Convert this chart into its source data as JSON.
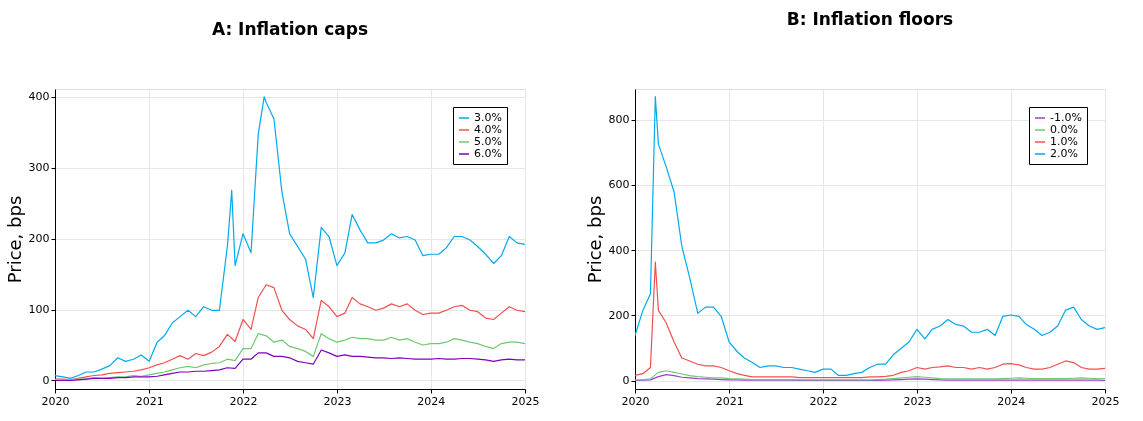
{
  "chart_data": [
    {
      "type": "line",
      "title": "A: Inflation caps",
      "ylabel": "Price, bps",
      "legend": "top right",
      "grid": true,
      "xlim": [
        "2020-01",
        "2025-01"
      ],
      "xticks": [
        "2020",
        "2021",
        "2022",
        "2023",
        "2024",
        "2025"
      ],
      "ylim": [
        -12,
        411
      ],
      "yticks": [
        0,
        100,
        200,
        300,
        400
      ],
      "x": [
        "2020-01",
        "2020-02",
        "2020-03",
        "2020-04",
        "2020-05",
        "2020-06",
        "2020-07",
        "2020-08",
        "2020-09",
        "2020-10",
        "2020-11",
        "2020-12",
        "2021-01",
        "2021-02",
        "2021-03",
        "2021-04",
        "2021-05",
        "2021-06",
        "2021-07",
        "2021-08",
        "2021-09",
        "2021-10",
        "2021-11",
        "2021-12",
        "2022-01",
        "2022-02",
        "2022-03",
        "2022-04",
        "2022-05",
        "2022-06",
        "2022-07",
        "2022-08",
        "2022-09",
        "2022-10",
        "2022-11",
        "2022-12",
        "2023-01",
        "2023-02",
        "2023-03",
        "2023-04",
        "2023-05",
        "2023-06",
        "2023-07",
        "2023-08",
        "2023-09",
        "2023-10",
        "2023-11",
        "2023-12",
        "2024-01",
        "2024-02",
        "2024-03",
        "2024-04",
        "2024-05",
        "2024-06",
        "2024-07",
        "2024-08",
        "2024-09",
        "2024-10",
        "2024-11",
        "2024-12",
        "2025-01"
      ],
      "series": [
        {
          "name": "3.0%",
          "color": "#00aaf0",
          "x": [
            "2020-01",
            "2020-02",
            "2020-03",
            "2020-04",
            "2020-05",
            "2020-06",
            "2020-07",
            "2020-08",
            "2020-09",
            "2020-10",
            "2020-11",
            "2020-12",
            "2021-01",
            "2021-02",
            "2021-03",
            "2021-04",
            "2021-05",
            "2021-06",
            "2021-07",
            "2021-08",
            "2021-09",
            "2021-10",
            "2021-11",
            "2021-11-18",
            "2021-12",
            "2022-01",
            "2022-02",
            "2022-03",
            "2022-03-24",
            "2022-04",
            "2022-05",
            "2022-06",
            "2022-07",
            "2022-08",
            "2022-09",
            "2022-10",
            "2022-11",
            "2022-12",
            "2023-01",
            "2023-02",
            "2023-03",
            "2023-04",
            "2023-05",
            "2023-06",
            "2023-07",
            "2023-08",
            "2023-09",
            "2023-10",
            "2023-11",
            "2023-12",
            "2024-01",
            "2024-02",
            "2024-03",
            "2024-04",
            "2024-05",
            "2024-06",
            "2024-07",
            "2024-08",
            "2024-09",
            "2024-10",
            "2024-11",
            "2024-12",
            "2025-01"
          ],
          "values": [
            7,
            5,
            3,
            7,
            12,
            12,
            16,
            21,
            32,
            27,
            30,
            36,
            27,
            54,
            63,
            81,
            90,
            99,
            90,
            104,
            99,
            99,
            189,
            268,
            162,
            207,
            180,
            347,
            400,
            392,
            369,
            266,
            207,
            189,
            171,
            117,
            216,
            203,
            162,
            180,
            234,
            212,
            194,
            194,
            198,
            207,
            201,
            203,
            198,
            176,
            178,
            178,
            187,
            203,
            203,
            198,
            189,
            178,
            165,
            176,
            203,
            194,
            192
          ]
        },
        {
          "name": "4.0%",
          "color": "#f05050",
          "values": [
            2,
            2,
            1,
            3,
            5,
            7,
            8,
            10,
            11,
            12,
            13,
            15,
            18,
            22,
            25,
            30,
            35,
            30,
            38,
            35,
            40,
            48,
            65,
            55,
            86,
            72,
            117,
            135,
            131,
            99,
            86,
            77,
            72,
            59,
            113,
            104,
            90,
            95,
            117,
            108,
            104,
            99,
            102,
            108,
            104,
            108,
            99,
            93,
            95,
            95,
            99,
            104,
            106,
            99,
            97,
            88,
            86,
            95,
            104,
            99,
            97
          ]
        },
        {
          "name": "5.0%",
          "color": "#70c870",
          "values": [
            1,
            1,
            1,
            2,
            2,
            4,
            3,
            4,
            5,
            5,
            7,
            6,
            8,
            10,
            12,
            15,
            18,
            20,
            18,
            22,
            24,
            25,
            30,
            28,
            45,
            45,
            66,
            63,
            54,
            57,
            48,
            45,
            41,
            34,
            66,
            59,
            54,
            57,
            61,
            59,
            59,
            57,
            57,
            61,
            57,
            59,
            54,
            50,
            52,
            52,
            54,
            59,
            57,
            54,
            52,
            48,
            45,
            52,
            54,
            54,
            52
          ]
        },
        {
          "name": "6.0%",
          "color": "#8000c0",
          "values": [
            0,
            0,
            0,
            1,
            2,
            3,
            3,
            3,
            4,
            4,
            5,
            5,
            5,
            6,
            8,
            10,
            12,
            12,
            13,
            13,
            14,
            15,
            18,
            17,
            30,
            30,
            39,
            39,
            34,
            34,
            32,
            27,
            25,
            23,
            43,
            39,
            34,
            36,
            34,
            34,
            33,
            32,
            32,
            31,
            32,
            31,
            30,
            30,
            30,
            31,
            30,
            30,
            31,
            31,
            30,
            29,
            27,
            29,
            30,
            29,
            29
          ]
        }
      ]
    },
    {
      "type": "line",
      "title": "B: Inflation floors",
      "ylabel": "Price, bps",
      "legend": "top right",
      "grid": true,
      "xlim": [
        "2020-01",
        "2025-01"
      ],
      "xticks": [
        "2020",
        "2021",
        "2022",
        "2023",
        "2024",
        "2025"
      ],
      "ylim": [
        -26,
        894
      ],
      "yticks": [
        0,
        200,
        400,
        600,
        800
      ],
      "x": [
        "2020-01",
        "2020-02",
        "2020-03",
        "2020-04",
        "2020-05",
        "2020-06",
        "2020-07",
        "2020-08",
        "2020-09",
        "2020-10",
        "2020-11",
        "2020-12",
        "2021-01",
        "2021-02",
        "2021-03",
        "2021-04",
        "2021-05",
        "2021-06",
        "2021-07",
        "2021-08",
        "2021-09",
        "2021-10",
        "2021-11",
        "2021-12",
        "2022-01",
        "2022-02",
        "2022-03",
        "2022-04",
        "2022-05",
        "2022-06",
        "2022-07",
        "2022-08",
        "2022-09",
        "2022-10",
        "2022-11",
        "2022-12",
        "2023-01",
        "2023-02",
        "2023-03",
        "2023-04",
        "2023-05",
        "2023-06",
        "2023-07",
        "2023-08",
        "2023-09",
        "2023-10",
        "2023-11",
        "2023-12",
        "2024-01",
        "2024-02",
        "2024-03",
        "2024-04",
        "2024-05",
        "2024-06",
        "2024-07",
        "2024-08",
        "2024-09",
        "2024-10",
        "2024-11",
        "2024-12",
        "2025-01"
      ],
      "series": [
        {
          "name": "-1.0%",
          "color": "#9a40d0",
          "values": [
            0,
            1,
            2,
            12,
            18,
            15,
            10,
            8,
            6,
            5,
            4,
            3,
            2,
            2,
            1,
            1,
            1,
            1,
            1,
            1,
            1,
            0,
            0,
            0,
            0,
            0,
            0,
            0,
            0,
            0,
            0,
            0,
            1,
            2,
            3,
            4,
            5,
            4,
            3,
            2,
            1,
            1,
            1,
            1,
            1,
            1,
            1,
            1,
            1,
            1,
            1,
            1,
            1,
            1,
            1,
            1,
            1,
            1,
            1,
            1,
            0
          ]
        },
        {
          "name": "0.0%",
          "color": "#70c870",
          "values": [
            2,
            3,
            5,
            25,
            30,
            25,
            20,
            15,
            12,
            10,
            8,
            8,
            6,
            5,
            4,
            3,
            3,
            3,
            3,
            3,
            3,
            2,
            2,
            2,
            2,
            2,
            2,
            2,
            2,
            2,
            2,
            3,
            4,
            6,
            8,
            10,
            12,
            10,
            8,
            6,
            5,
            5,
            5,
            5,
            5,
            5,
            5,
            6,
            7,
            8,
            7,
            6,
            6,
            6,
            6,
            6,
            7,
            8,
            7,
            6,
            5
          ]
        },
        {
          "name": "1.0%",
          "color": "#f05050",
          "x": [
            "2020-01",
            "2020-02",
            "2020-03",
            "2020-03-20",
            "2020-04",
            "2020-05",
            "2020-06",
            "2020-07",
            "2020-08",
            "2020-09",
            "2020-10",
            "2020-11",
            "2020-12",
            "2021-01",
            "2021-02",
            "2021-03",
            "2021-04",
            "2021-05",
            "2021-06",
            "2021-07",
            "2021-08",
            "2021-09",
            "2021-10",
            "2021-11",
            "2021-12",
            "2022-01",
            "2022-02",
            "2022-03",
            "2022-04",
            "2022-05",
            "2022-06",
            "2022-07",
            "2022-08",
            "2022-09",
            "2022-10",
            "2022-11",
            "2022-12",
            "2023-01",
            "2023-02",
            "2023-03",
            "2023-04",
            "2023-05",
            "2023-06",
            "2023-07",
            "2023-08",
            "2023-09",
            "2023-10",
            "2023-11",
            "2023-12",
            "2024-01",
            "2024-02",
            "2024-03",
            "2024-04",
            "2024-05",
            "2024-06",
            "2024-07",
            "2024-08",
            "2024-09",
            "2024-10",
            "2024-11",
            "2024-12",
            "2025-01"
          ],
          "values": [
            16,
            21,
            40,
            363,
            215,
            177,
            118,
            69,
            60,
            50,
            45,
            45,
            40,
            30,
            21,
            16,
            11,
            11,
            11,
            11,
            11,
            11,
            9,
            9,
            9,
            9,
            9,
            9,
            9,
            9,
            9,
            11,
            11,
            13,
            16,
            25,
            30,
            40,
            35,
            40,
            42,
            45,
            40,
            40,
            35,
            40,
            35,
            40,
            50,
            52,
            48,
            40,
            35,
            35,
            40,
            50,
            60,
            55,
            40,
            35,
            35,
            37
          ]
        },
        {
          "name": "2.0%",
          "color": "#00aaf0",
          "x": [
            "2020-01",
            "2020-02",
            "2020-03",
            "2020-03-20",
            "2020-04",
            "2020-05",
            "2020-06",
            "2020-07",
            "2020-08",
            "2020-09",
            "2020-10",
            "2020-11",
            "2020-12",
            "2021-01",
            "2021-02",
            "2021-03",
            "2021-04",
            "2021-05",
            "2021-06",
            "2021-07",
            "2021-08",
            "2021-09",
            "2021-10",
            "2021-11",
            "2021-12",
            "2022-01",
            "2022-02",
            "2022-03",
            "2022-04",
            "2022-05",
            "2022-06",
            "2022-07",
            "2022-08",
            "2022-09",
            "2022-10",
            "2022-11",
            "2022-12",
            "2023-01",
            "2023-02",
            "2023-03",
            "2023-04",
            "2023-05",
            "2023-06",
            "2023-07",
            "2023-08",
            "2023-09",
            "2023-10",
            "2023-11",
            "2023-12",
            "2024-01",
            "2024-02",
            "2024-03",
            "2024-04",
            "2024-05",
            "2024-06",
            "2024-07",
            "2024-08",
            "2024-09",
            "2024-10",
            "2024-11",
            "2024-12",
            "2025-01"
          ],
          "values": [
            138,
            216,
            265,
            871,
            725,
            656,
            578,
            412,
            314,
            206,
            225,
            225,
            197,
            118,
            89,
            69,
            55,
            40,
            45,
            45,
            40,
            40,
            35,
            30,
            25,
            35,
            35,
            16,
            16,
            21,
            25,
            40,
            50,
            50,
            79,
            99,
            118,
            157,
            128,
            157,
            167,
            187,
            172,
            167,
            148,
            148,
            157,
            138,
            197,
            201,
            197,
            172,
            157,
            138,
            148,
            167,
            216,
            225,
            187,
            167,
            157,
            162
          ]
        }
      ]
    }
  ]
}
